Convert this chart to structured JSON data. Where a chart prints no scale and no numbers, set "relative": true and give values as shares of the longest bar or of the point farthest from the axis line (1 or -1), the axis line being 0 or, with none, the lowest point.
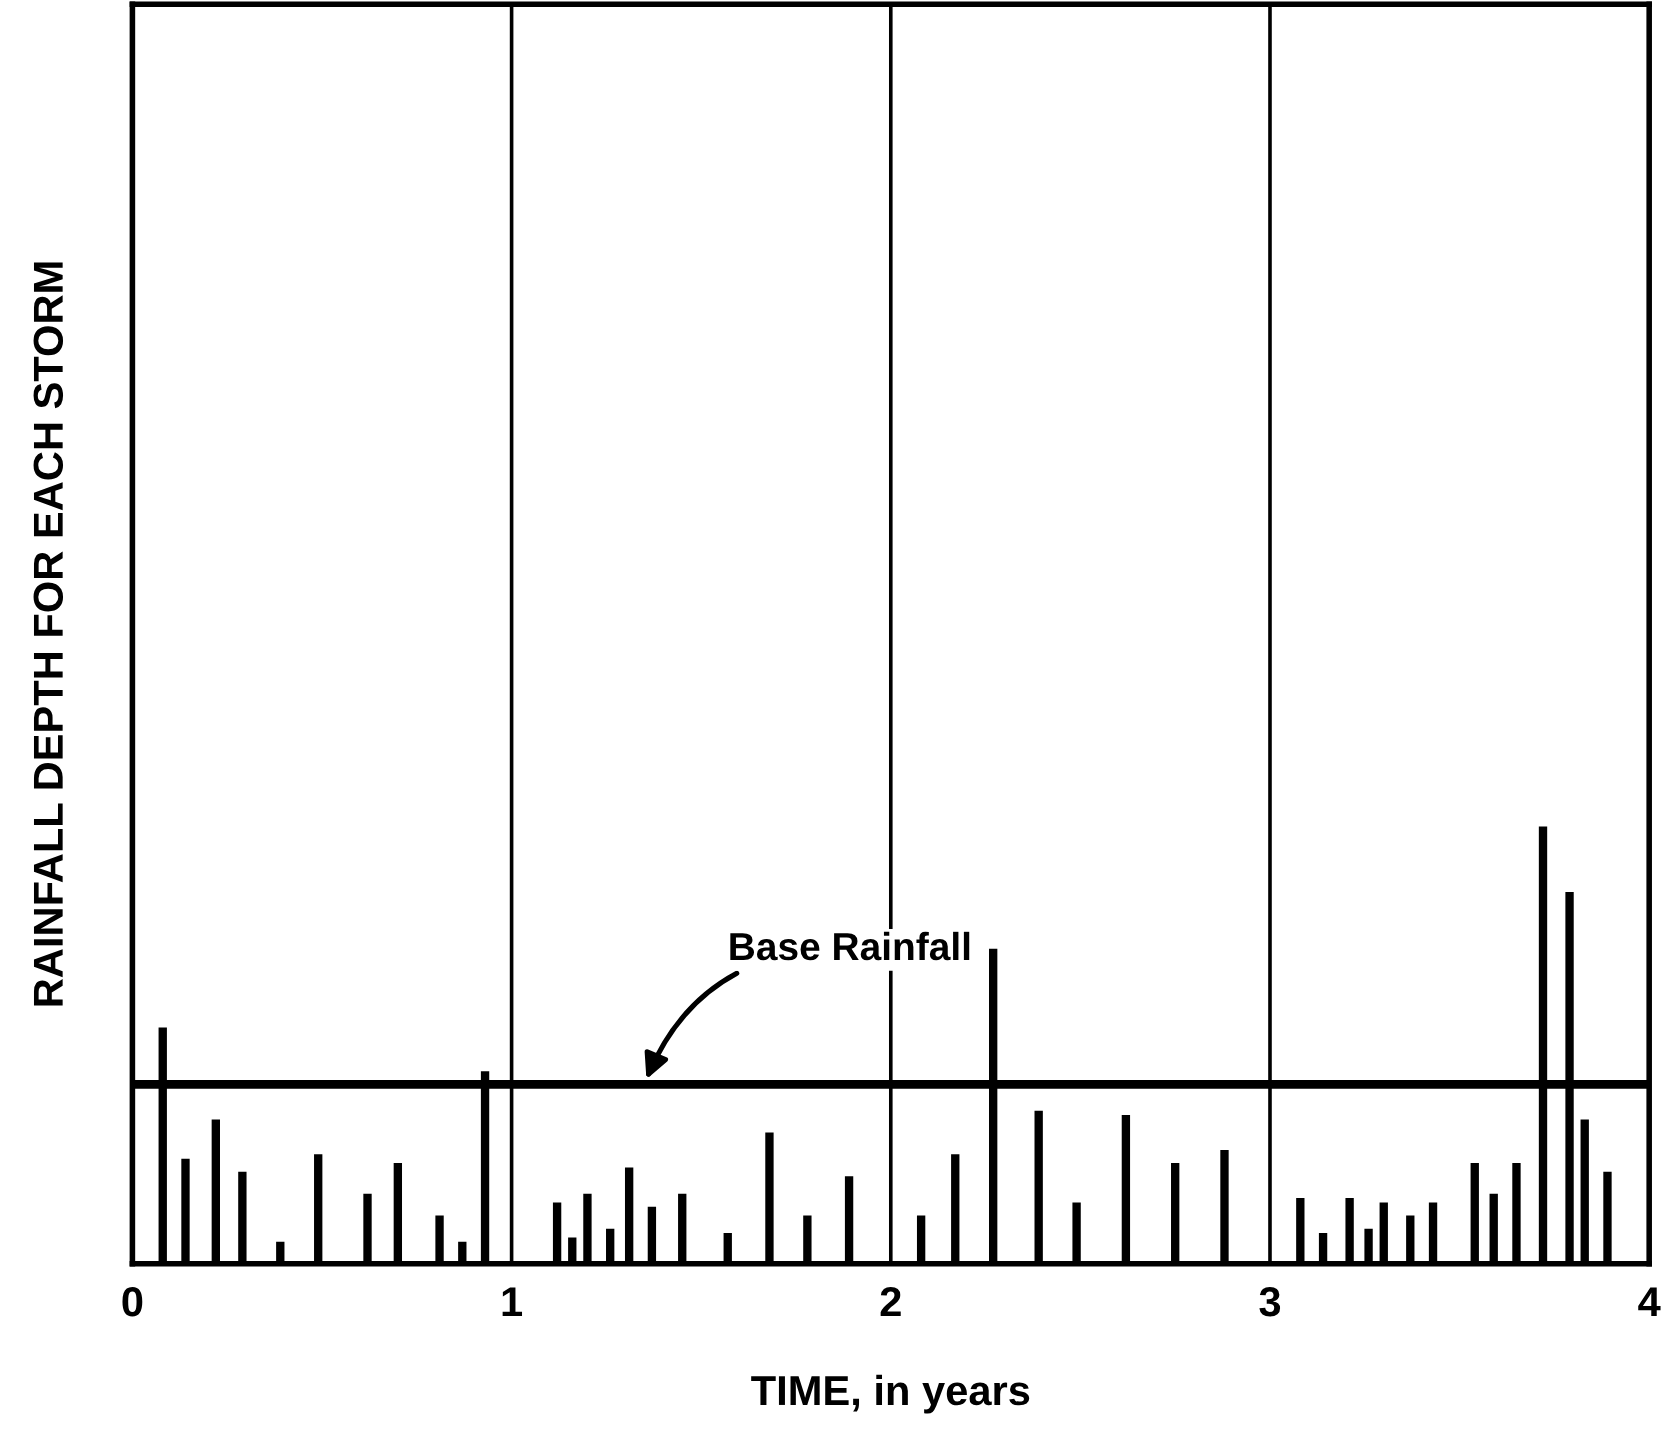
{
  "chart_data": {
    "type": "bar",
    "relative": true,
    "xlabel": "TIME, in years",
    "ylabel": "RAINFALL DEPTH FOR EACH STORM",
    "x": [
      0.08,
      0.14,
      0.22,
      0.29,
      0.39,
      0.49,
      0.62,
      0.7,
      0.81,
      0.87,
      0.93,
      1.12,
      1.16,
      1.2,
      1.26,
      1.31,
      1.37,
      1.45,
      1.57,
      1.68,
      1.78,
      1.89,
      2.08,
      2.17,
      2.27,
      2.39,
      2.49,
      2.62,
      2.75,
      2.88,
      3.08,
      3.14,
      3.21,
      3.26,
      3.3,
      3.37,
      3.43,
      3.54,
      3.59,
      3.65,
      3.72,
      3.79,
      3.83,
      3.89
    ],
    "values": [
      0.54,
      0.24,
      0.33,
      0.21,
      0.05,
      0.25,
      0.16,
      0.23,
      0.11,
      0.05,
      0.44,
      0.14,
      0.06,
      0.16,
      0.08,
      0.22,
      0.13,
      0.16,
      0.07,
      0.3,
      0.11,
      0.2,
      0.11,
      0.25,
      0.72,
      0.35,
      0.14,
      0.34,
      0.23,
      0.26,
      0.15,
      0.07,
      0.15,
      0.08,
      0.14,
      0.11,
      0.14,
      0.23,
      0.16,
      0.23,
      1.0,
      0.85,
      0.33,
      0.21
    ],
    "color": "#000000",
    "xlim": [
      0,
      4
    ],
    "xticks": [
      0,
      1,
      2,
      3,
      4
    ],
    "grid": "x",
    "ref_lines": [
      {
        "axis": "y",
        "value": 0.41,
        "label": "Base Rainfall",
        "color": "#000000"
      }
    ]
  }
}
